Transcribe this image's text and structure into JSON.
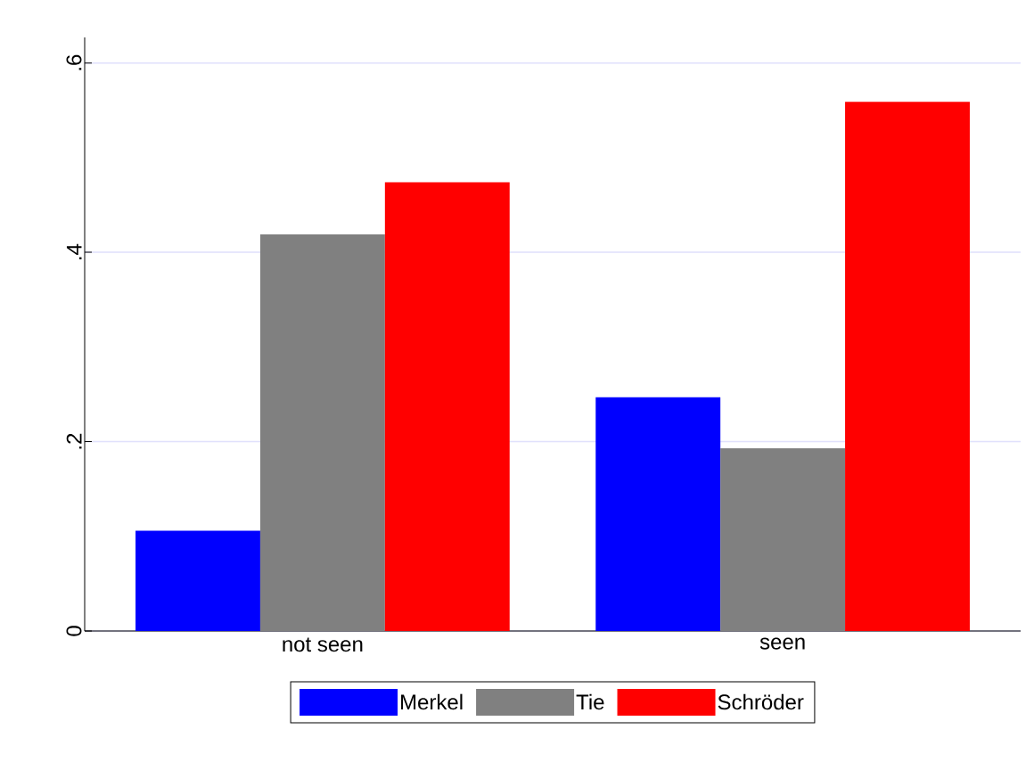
{
  "chart_data": {
    "type": "bar",
    "categories": [
      "not seen",
      "seen"
    ],
    "series": [
      {
        "name": "Merkel",
        "color": "#0000ff",
        "values": [
          0.106,
          0.247
        ]
      },
      {
        "name": "Tie",
        "color": "#808080",
        "values": [
          0.419,
          0.193
        ]
      },
      {
        "name": "Schröder",
        "color": "#ff0000",
        "values": [
          0.474,
          0.559
        ]
      }
    ],
    "ylim": [
      0,
      0.627
    ],
    "yticks": [
      0,
      {
        "value": 0.2,
        "label": ".2"
      },
      {
        "value": 0.4,
        "label": ".4"
      },
      {
        "value": 0.6,
        "label": ".6"
      }
    ],
    "grid": "y",
    "legend": "bottom"
  }
}
